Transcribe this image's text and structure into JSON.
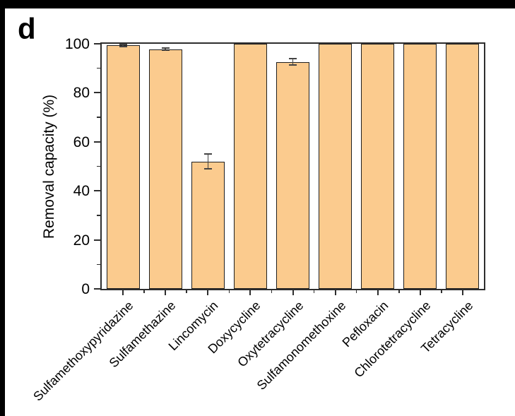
{
  "figure": {
    "panel_label": "d"
  },
  "chart_data": {
    "type": "bar",
    "title": "",
    "panel_label": "d",
    "categories": [
      "Sulfamethoxypyridazine",
      "Sulfamethazine",
      "Lincomycin",
      "Doxycycline",
      "Oxytetracycline",
      "Sulfamonomethoxine",
      "Pefloxacin",
      "Chlorotetracycline",
      "Tetracycline"
    ],
    "values": [
      99.3,
      97.8,
      52,
      100,
      92.6,
      100,
      100,
      100,
      100
    ],
    "errors": [
      0.4,
      0.5,
      3.0,
      0,
      1.3,
      0,
      0,
      0,
      0
    ],
    "xlabel": "",
    "ylabel": "Removal capacity (%)",
    "ylim": [
      0,
      100
    ],
    "yticks_major": [
      0,
      20,
      40,
      60,
      80,
      100
    ],
    "yticks_minor": [
      10,
      30,
      50,
      70,
      90
    ],
    "grid": false,
    "legend": null,
    "bar_color": "#fbcb8e",
    "bar_edge_color": "#1f1f1f",
    "axis_color": "#2e2e2e",
    "error_bar_color": "#444444"
  }
}
